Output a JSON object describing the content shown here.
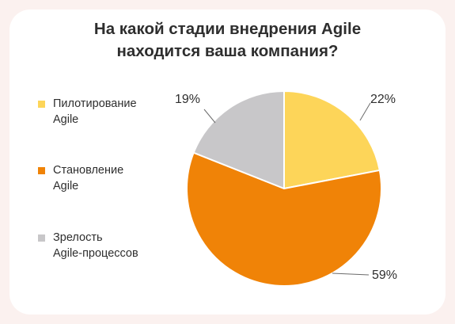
{
  "chart_data": {
    "type": "pie",
    "title_lines": [
      "На какой стадии внедрения Agile",
      "находится ваша компания?"
    ],
    "slices": [
      {
        "label": "Пилотирование\nAgile",
        "value": 22,
        "value_label": "22%",
        "color": "#fdd559"
      },
      {
        "label": "Становление\nAgile",
        "value": 59,
        "value_label": "59%",
        "color": "#f08307"
      },
      {
        "label": "Зрелость\nAgile-процессов",
        "value": 19,
        "value_label": "19%",
        "color": "#c8c7c9"
      }
    ],
    "start_angle": "12 o'clock",
    "direction": "clockwise",
    "legend_position": "left"
  },
  "colors": {
    "background": "#fbf1ef",
    "card": "#ffffff",
    "text": "#2e2e2e",
    "leader_line": "#6b6b6b"
  }
}
